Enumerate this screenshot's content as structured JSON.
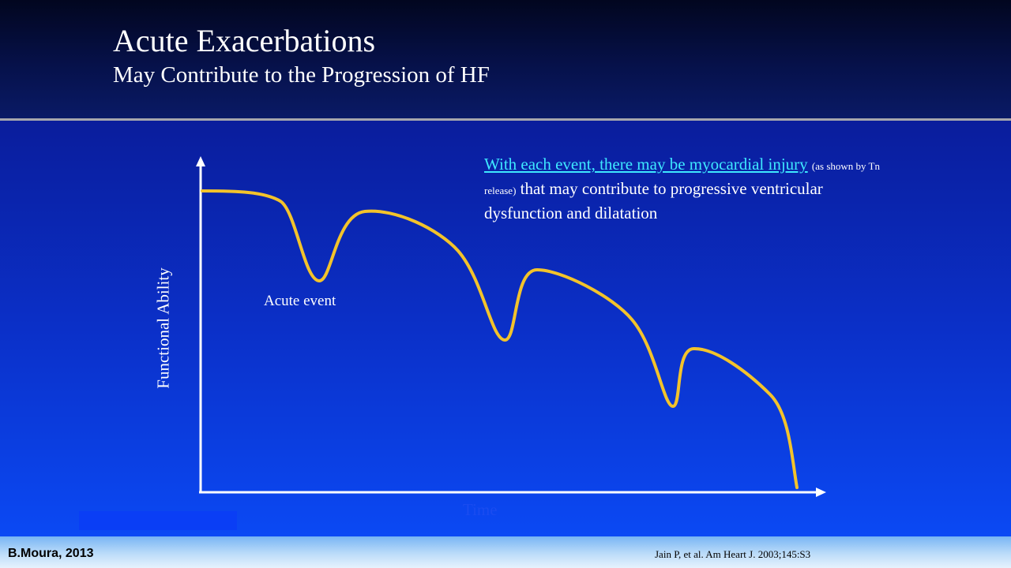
{
  "slide": {
    "title": "Acute Exacerbations",
    "subtitle": "May Contribute to the Progression of HF"
  },
  "chart_data": {
    "type": "line",
    "xlabel": "Time",
    "ylabel": "Functional Ability",
    "annotation_event": "Acute event",
    "annotation": {
      "highlight": "With each event, there may be myocardial injury",
      "small": "(as shown by Tn release)",
      "rest": "that may contribute to progressive ventricular dysfunction and dilatation"
    },
    "series": [
      {
        "color": "#f3c32b"
      }
    ]
  },
  "footer": {
    "author": "B.Moura, 2013",
    "citation": "Jain P, et al. Am Heart J. 2003;145:S3"
  },
  "colors": {
    "curve": "#f3c32b",
    "highlight_text": "#3ee8ff",
    "background": "#0b3ad8"
  }
}
